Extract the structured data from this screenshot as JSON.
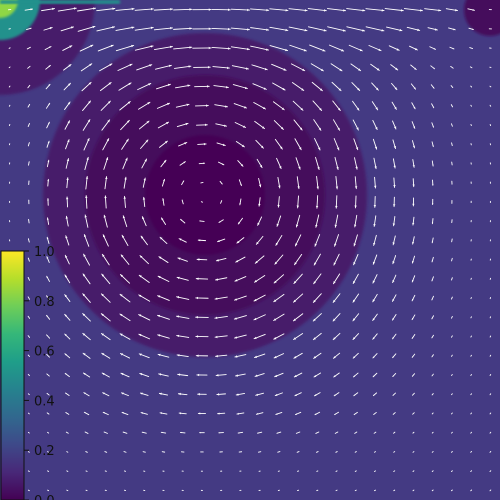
{
  "chart_data": {
    "type": "heatmap",
    "title": "",
    "xlabel": "",
    "ylabel": "",
    "description_type": "filled contour of speed with velocity quiver arrows (lid-driven cavity flow)",
    "x_range": [
      0,
      1
    ],
    "y_range": [
      0,
      1
    ],
    "colormap": "viridis",
    "colorbar": {
      "range": [
        0.0,
        1.0
      ],
      "ticks": [
        "0.0",
        "0.2",
        "0.4",
        "0.6",
        "0.8",
        "1.0"
      ],
      "placement": "left"
    },
    "contour_levels": [
      {
        "level": 0.0,
        "color": "#440154"
      },
      {
        "level": 0.06,
        "color": "#450e5c"
      },
      {
        "level": 0.12,
        "color": "#471e6a"
      },
      {
        "level": 0.18,
        "color": "#443a83"
      },
      {
        "level": 0.5,
        "color": "#21918c"
      },
      {
        "level": 0.8,
        "color": "#8fd744"
      },
      {
        "level": 1.0,
        "color": "#fde725"
      }
    ],
    "vortex": {
      "primary_center": [
        0.41,
        0.61
      ],
      "primary_scale": 0.24,
      "corner_eddy_center": [
        0.98,
        0.98
      ],
      "lid_speed": 1.0
    },
    "quiver": {
      "grid": 26,
      "arrow_color": "#ffffff"
    }
  }
}
